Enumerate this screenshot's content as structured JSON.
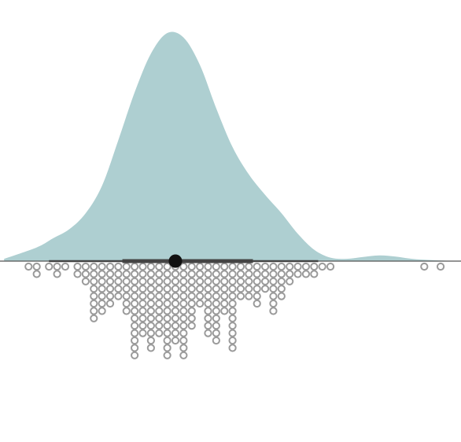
{
  "colors": {
    "background": "#ffffff",
    "density_fill": "#aecfd1",
    "baseline": "#555555",
    "interval_line": "#444444",
    "median_point": "#111111",
    "dot_stroke": "#9a9a9a",
    "dot_fill": "#ffffff"
  },
  "chart_data": {
    "type": "raincloud",
    "title": "",
    "xlabel": "",
    "ylabel": "",
    "axis_visible": false,
    "grid": false,
    "legend": "none",
    "xlim": [
      -2.65,
      3.0
    ],
    "density": {
      "x": [
        -2.6,
        -2.2,
        -2.0,
        -1.8,
        -1.6,
        -1.4,
        -1.2,
        -1.0,
        -0.8,
        -0.6,
        -0.4,
        -0.2,
        0.0,
        0.2,
        0.4,
        0.6,
        0.8,
        1.0,
        1.2,
        1.4,
        1.6,
        1.8,
        2.0,
        2.2,
        2.4,
        2.6,
        2.8,
        3.0
      ],
      "y": [
        0.01,
        0.06,
        0.1,
        0.14,
        0.21,
        0.33,
        0.53,
        0.74,
        0.91,
        1.0,
        0.98,
        0.86,
        0.67,
        0.5,
        0.38,
        0.29,
        0.21,
        0.12,
        0.05,
        0.015,
        0.01,
        0.018,
        0.025,
        0.02,
        0.01,
        0.005,
        0.002,
        0.0
      ],
      "note_y_is_relative_density": true
    },
    "summary": {
      "median": -0.5,
      "interval_66": [
        -1.15,
        0.45
      ],
      "interval_95": [
        -2.05,
        1.25
      ]
    },
    "dots": {
      "columns": [
        {
          "x": -2.3,
          "count": 1
        },
        {
          "x": -2.2,
          "count": 2
        },
        {
          "x": -2.05,
          "count": 1
        },
        {
          "x": -1.95,
          "count": 2
        },
        {
          "x": -1.85,
          "count": 1
        },
        {
          "x": -1.7,
          "count": 2
        },
        {
          "x": -1.6,
          "count": 3
        },
        {
          "x": -1.5,
          "count": 8
        },
        {
          "x": -1.4,
          "count": 7
        },
        {
          "x": -1.3,
          "count": 6
        },
        {
          "x": -1.2,
          "count": 5
        },
        {
          "x": -1.1,
          "count": 7
        },
        {
          "x": -1.0,
          "count": 13
        },
        {
          "x": -0.9,
          "count": 10
        },
        {
          "x": -0.8,
          "count": 12
        },
        {
          "x": -0.7,
          "count": 10
        },
        {
          "x": -0.6,
          "count": 13
        },
        {
          "x": -0.5,
          "count": 11
        },
        {
          "x": -0.4,
          "count": 13
        },
        {
          "x": -0.3,
          "count": 9
        },
        {
          "x": -0.2,
          "count": 6
        },
        {
          "x": -0.1,
          "count": 10
        },
        {
          "x": 0.0,
          "count": 11
        },
        {
          "x": 0.1,
          "count": 7
        },
        {
          "x": 0.2,
          "count": 12
        },
        {
          "x": 0.3,
          "count": 5
        },
        {
          "x": 0.4,
          "count": 5
        },
        {
          "x": 0.5,
          "count": 6
        },
        {
          "x": 0.6,
          "count": 4
        },
        {
          "x": 0.7,
          "count": 7
        },
        {
          "x": 0.8,
          "count": 5
        },
        {
          "x": 0.9,
          "count": 3
        },
        {
          "x": 1.0,
          "count": 2
        },
        {
          "x": 1.1,
          "count": 2
        },
        {
          "x": 1.2,
          "count": 2
        },
        {
          "x": 1.3,
          "count": 1
        },
        {
          "x": 1.4,
          "count": 1
        },
        {
          "x": 2.55,
          "count": 1
        },
        {
          "x": 2.75,
          "count": 1
        }
      ]
    }
  }
}
